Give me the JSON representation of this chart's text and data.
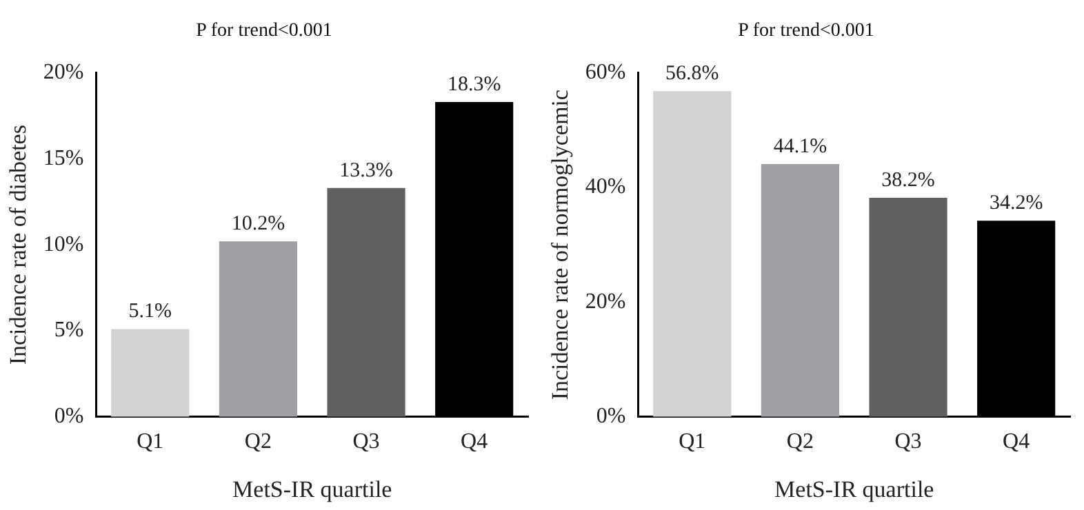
{
  "chart_data": [
    {
      "type": "bar",
      "title": "P for trend<0.001",
      "xlabel": "MetS-IR quartile",
      "ylabel": "Incidence rate of diabetes",
      "categories": [
        "Q1",
        "Q2",
        "Q3",
        "Q4"
      ],
      "values": [
        5.1,
        10.2,
        13.3,
        18.3
      ],
      "colors": [
        "#d3d3d3",
        "#a0a0a4",
        "#606060",
        "#000000"
      ],
      "value_labels": [
        "5.1%",
        "10.2%",
        "13.3%",
        "18.3%"
      ],
      "ylim": [
        0,
        20
      ],
      "yticks": [
        {
          "value": 0,
          "label": "0%"
        },
        {
          "value": 5,
          "label": "5%"
        },
        {
          "value": 10,
          "label": "10%"
        },
        {
          "value": 15,
          "label": "15%"
        },
        {
          "value": 20,
          "label": "20%"
        }
      ],
      "grid": false,
      "legend": false
    },
    {
      "type": "bar",
      "title": "P for trend<0.001",
      "xlabel": "MetS-IR quartile",
      "ylabel": "Incidence rate of normoglycemic",
      "categories": [
        "Q1",
        "Q2",
        "Q3",
        "Q4"
      ],
      "values": [
        56.8,
        44.1,
        38.2,
        34.2
      ],
      "colors": [
        "#d3d3d3",
        "#a0a0a4",
        "#606060",
        "#000000"
      ],
      "value_labels": [
        "56.8%",
        "44.1%",
        "38.2%",
        "34.2%"
      ],
      "ylim": [
        0,
        60
      ],
      "yticks": [
        {
          "value": 0,
          "label": "0%"
        },
        {
          "value": 20,
          "label": "20%"
        },
        {
          "value": 40,
          "label": "40%"
        },
        {
          "value": 60,
          "label": "60%"
        }
      ],
      "grid": false,
      "legend": false
    }
  ]
}
